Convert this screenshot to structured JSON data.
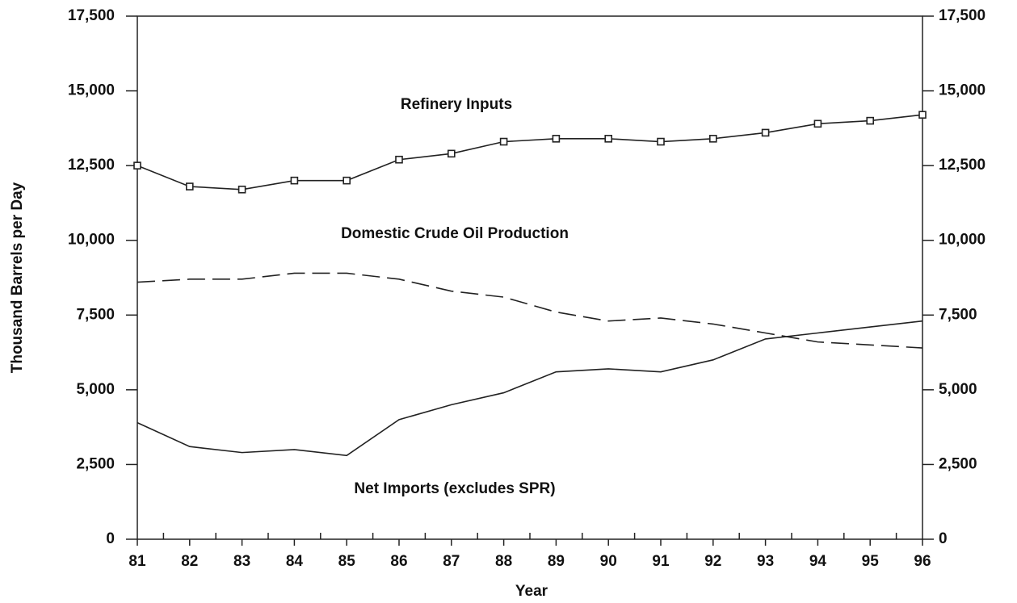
{
  "chart_data": {
    "type": "line",
    "x_label": "Year",
    "y_label": "Thousand Barrels per Day",
    "categories": [
      "81",
      "82",
      "83",
      "84",
      "85",
      "86",
      "87",
      "88",
      "89",
      "90",
      "91",
      "92",
      "93",
      "94",
      "95",
      "96"
    ],
    "series": [
      {
        "name": "Refinery Inputs",
        "color": "#222222",
        "dash": false,
        "marker": "square",
        "values": [
          12500,
          11800,
          11700,
          12000,
          12000,
          12700,
          12900,
          13300,
          13400,
          13400,
          13300,
          13400,
          13600,
          13900,
          14000,
          14200
        ]
      },
      {
        "name": "Domestic Crude Oil Production",
        "color": "#222222",
        "dash": true,
        "marker": "none",
        "values": [
          8600,
          8700,
          8700,
          8900,
          8900,
          8700,
          8300,
          8100,
          7600,
          7300,
          7400,
          7200,
          6900,
          6600,
          6500,
          6400
        ]
      },
      {
        "name": "Net Imports (excludes SPR)",
        "color": "#222222",
        "dash": false,
        "marker": "none",
        "values": [
          3900,
          3100,
          2900,
          3000,
          2800,
          4000,
          4500,
          4900,
          5600,
          5700,
          5600,
          6000,
          6700,
          6900,
          7100,
          7300
        ]
      }
    ],
    "ylim": [
      0,
      17500
    ],
    "yticks": [
      0,
      {
        "value": 2500,
        "label": "2,500"
      },
      {
        "value": 5000,
        "label": "5,000"
      },
      {
        "value": 7500,
        "label": "7,500"
      },
      {
        "value": 10000,
        "label": "10,000"
      },
      {
        "value": 12500,
        "label": "12,500"
      },
      {
        "value": 15000,
        "label": "15,000"
      },
      {
        "value": 17500,
        "label": "17,500"
      }
    ],
    "y2lim": [
      0,
      17500
    ],
    "y2ticks": [
      0,
      {
        "value": 2500,
        "label": "2,500"
      },
      {
        "value": 5000,
        "label": "5,000"
      },
      {
        "value": 7500,
        "label": "7,500"
      },
      {
        "value": 10000,
        "label": "10,000"
      },
      {
        "value": 12500,
        "label": "12,500"
      },
      {
        "value": 15000,
        "label": "15,000"
      },
      {
        "value": 17500,
        "label": "17,500"
      }
    ],
    "grid": false
  }
}
